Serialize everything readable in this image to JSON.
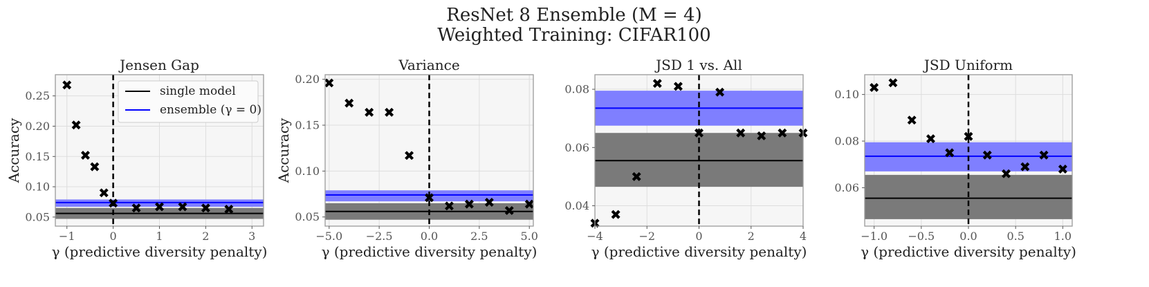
{
  "figure": {
    "title_line1": "ResNet 8 Ensemble (M = 4)",
    "title_line2": "Weighted Training: CIFAR100"
  },
  "colors": {
    "background": "#f6f6f6",
    "grid": "#dddddd",
    "single": "#000000",
    "single_band": "#7a7a7a",
    "ensemble": "#0000ff",
    "ensemble_band": "#7f7fff",
    "zero_line": "#000000"
  },
  "legend": {
    "single_label": "single model",
    "ensemble_label": "ensemble (γ = 0)"
  },
  "chart_data": [
    {
      "type": "scatter",
      "title": "Jensen Gap",
      "xlabel": "γ (predictive diversity penalty)",
      "ylabel": "Accuracy",
      "xlim": [
        -1.25,
        3.25
      ],
      "ylim": [
        0.035,
        0.285
      ],
      "xticks": [
        -1,
        0,
        1,
        2,
        3
      ],
      "xtick_labels": [
        "−1",
        "0",
        "1",
        "2",
        "3"
      ],
      "yticks": [
        0.05,
        0.1,
        0.15,
        0.2,
        0.25
      ],
      "ytick_labels": [
        "0.05",
        "0.10",
        "0.15",
        "0.20",
        "0.25"
      ],
      "x": [
        -1.0,
        -0.8,
        -0.6,
        -0.4,
        -0.2,
        0.0,
        0.5,
        1.0,
        1.5,
        2.0,
        2.5
      ],
      "y": [
        0.268,
        0.202,
        0.152,
        0.133,
        0.09,
        0.073,
        0.065,
        0.067,
        0.067,
        0.065,
        0.063
      ],
      "single_mean": 0.056,
      "single_band": [
        0.047,
        0.065
      ],
      "ensemble_mean": 0.074,
      "ensemble_band": [
        0.067,
        0.079
      ],
      "legend": "top-right"
    },
    {
      "type": "scatter",
      "title": "Variance",
      "xlabel": "γ (predictive diversity penalty)",
      "ylabel": "Accuracy",
      "xlim": [
        -5.2,
        5.2
      ],
      "ylim": [
        0.04,
        0.205
      ],
      "xticks": [
        -5,
        -2.5,
        0,
        2.5,
        5
      ],
      "xtick_labels": [
        "−5.0",
        "−2.5",
        "0.0",
        "2.5",
        "5.0"
      ],
      "yticks": [
        0.05,
        0.1,
        0.15,
        0.2
      ],
      "ytick_labels": [
        "0.05",
        "0.10",
        "0.15",
        "0.20"
      ],
      "x": [
        -5,
        -4,
        -3,
        -2,
        -1,
        0,
        1,
        2,
        3,
        4,
        5
      ],
      "y": [
        0.196,
        0.174,
        0.164,
        0.164,
        0.117,
        0.071,
        0.062,
        0.064,
        0.066,
        0.057,
        0.064
      ],
      "single_mean": 0.056,
      "single_band": [
        0.047,
        0.065
      ],
      "ensemble_mean": 0.074,
      "ensemble_band": [
        0.067,
        0.079
      ]
    },
    {
      "type": "scatter",
      "title": "JSD 1 vs. All",
      "xlabel": "γ (predictive diversity penalty)",
      "ylabel": "",
      "xlim": [
        -4,
        4
      ],
      "ylim": [
        0.033,
        0.085
      ],
      "xticks": [
        -4,
        -2,
        0,
        2,
        4
      ],
      "xtick_labels": [
        "−4",
        "−2",
        "0",
        "2",
        "4"
      ],
      "yticks": [
        0.04,
        0.06,
        0.08
      ],
      "ytick_labels": [
        "0.04",
        "0.06",
        "0.08"
      ],
      "x": [
        -4.0,
        -3.2,
        -2.4,
        -1.6,
        -0.8,
        0.0,
        0.8,
        1.6,
        2.4,
        3.2,
        4.0
      ],
      "y": [
        0.034,
        0.037,
        0.05,
        0.082,
        0.081,
        0.065,
        0.079,
        0.065,
        0.064,
        0.065,
        0.065
      ],
      "single_mean": 0.0555,
      "single_band": [
        0.0465,
        0.065
      ],
      "ensemble_mean": 0.0735,
      "ensemble_band": [
        0.0675,
        0.0795
      ]
    },
    {
      "type": "scatter",
      "title": "JSD Uniform",
      "xlabel": "γ (predictive diversity penalty)",
      "ylabel": "",
      "xlim": [
        -1.1,
        1.1
      ],
      "ylim": [
        0.0435,
        0.1085
      ],
      "xticks": [
        -1,
        -0.5,
        0,
        0.5,
        1
      ],
      "xtick_labels": [
        "−1.0",
        "−0.5",
        "0.0",
        "0.5",
        "1.0"
      ],
      "yticks": [
        0.06,
        0.08,
        0.1
      ],
      "ytick_labels": [
        "0.06",
        "0.08",
        "0.10"
      ],
      "x": [
        -1.0,
        -0.8,
        -0.6,
        -0.4,
        -0.2,
        0.0,
        0.2,
        0.4,
        0.6,
        0.8,
        1.0
      ],
      "y": [
        0.103,
        0.105,
        0.089,
        0.081,
        0.075,
        0.082,
        0.074,
        0.066,
        0.069,
        0.074,
        0.068
      ],
      "single_mean": 0.0555,
      "single_band": [
        0.0465,
        0.0655
      ],
      "ensemble_mean": 0.0735,
      "ensemble_band": [
        0.067,
        0.0795
      ]
    }
  ]
}
